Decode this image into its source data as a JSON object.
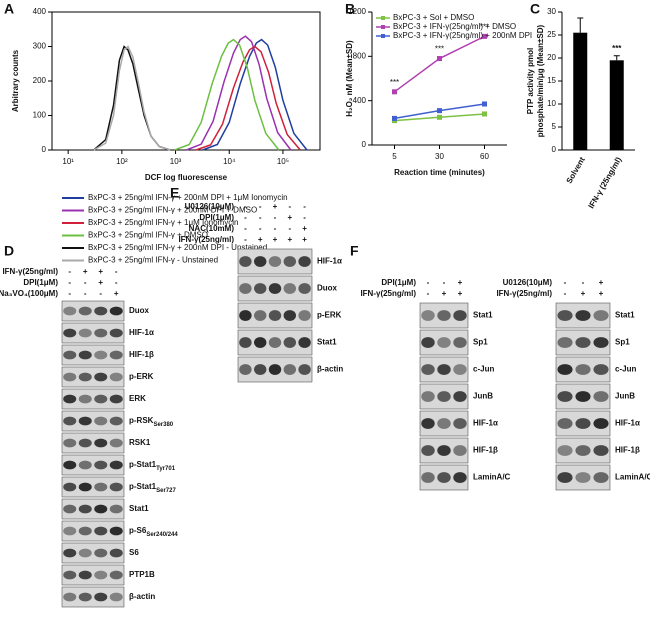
{
  "chart_data": [
    {
      "type": "line",
      "label": "A",
      "xscale": "log",
      "xlabel": "DCF log fluorescense",
      "ylabel": "Arbitrary counts",
      "xlim": [
        5,
        490000
      ],
      "ylim": [
        0,
        400
      ],
      "xticks": [
        {
          "value": 10,
          "label": "10¹"
        },
        {
          "value": 100,
          "label": "10²"
        },
        {
          "value": 1000,
          "label": "10³"
        },
        {
          "value": 10000,
          "label": "10⁴"
        },
        {
          "value": 100000,
          "label": "10⁵"
        }
      ],
      "yticks": [
        0,
        100,
        200,
        300,
        400
      ],
      "series": [
        {
          "name": "BxPC-3 + 25ng/ml IFN-γ + 200nM DPI + 1μM Ionomycin",
          "color": "#1f3f9f",
          "x": [
            3200,
            6000,
            10000,
            16000,
            24000,
            32000,
            40000,
            52000,
            72000,
            100000,
            160000,
            280000
          ],
          "values": [
            0,
            16,
            80,
            192,
            272,
            310,
            320,
            304,
            240,
            144,
            48,
            0
          ]
        },
        {
          "name": "BxPC-3 + 25ng/ml IFN-γ + 200nM DPI + DMSO",
          "color": "#9b30b0",
          "x": [
            1600,
            3000,
            5000,
            8000,
            12000,
            16000,
            20000,
            26000,
            36000,
            50000,
            80000,
            140000
          ],
          "values": [
            0,
            17,
            83,
            198,
            281,
            320,
            330,
            314,
            248,
            149,
            50,
            0
          ]
        },
        {
          "name": "BxPC-3 + 25ng/ml IFN-γ + 1μM Ionomycin",
          "color": "#d0203a",
          "x": [
            2400,
            4500,
            7500,
            12000,
            18000,
            24000,
            30000,
            39000,
            54000,
            75000,
            120000,
            210000
          ],
          "values": [
            0,
            15,
            75,
            180,
            255,
            291,
            300,
            285,
            225,
            135,
            45,
            0
          ]
        },
        {
          "name": "BxPC-3 + 25ng/ml IFN-γ + DMSO",
          "color": "#6cc040",
          "x": [
            960,
            1800,
            3000,
            4800,
            7200,
            9600,
            12000,
            15600,
            21600,
            30000,
            48000,
            84000
          ],
          "values": [
            0,
            16,
            80,
            192,
            272,
            310,
            320,
            304,
            240,
            144,
            48,
            0
          ]
        },
        {
          "name": "BxPC-3 + 25ng/ml IFN-γ + 200nM DPI - Unstained",
          "color": "#111111",
          "x": [
            30,
            50,
            70,
            90,
            110,
            130,
            160,
            200,
            260,
            350,
            500,
            800
          ],
          "values": [
            0,
            30,
            130,
            260,
            300,
            290,
            250,
            180,
            100,
            40,
            10,
            0
          ]
        },
        {
          "name": "BxPC-3 + 25ng/ml IFN-γ - Unstained",
          "color": "#aaaaaa",
          "x": [
            30,
            50,
            70,
            90,
            110,
            130,
            160,
            200,
            260,
            350,
            500,
            800
          ],
          "values": [
            0,
            20,
            100,
            230,
            290,
            300,
            270,
            200,
            110,
            40,
            10,
            0
          ]
        }
      ]
    },
    {
      "type": "line",
      "label": "B",
      "xlabel": "Reaction time (minutes)",
      "ylabel": "H₂O₂ nM (Mean±SD)",
      "categories": [
        "5",
        "30",
        "60"
      ],
      "ylim": [
        0,
        1200
      ],
      "yticks": [
        0,
        400,
        800,
        1200
      ],
      "series": [
        {
          "name": "BxPC-3 + Sol + DMSO",
          "color": "#7dc242",
          "values": [
            220,
            250,
            280
          ]
        },
        {
          "name": "BxPC-3 + IFN-γ(25ng/ml) + DMSO",
          "color": "#b040b0",
          "values": [
            480,
            780,
            980
          ],
          "point_labels": [
            "***",
            "***",
            "***"
          ]
        },
        {
          "name": "BxPC-3 + IFN-γ(25ng/ml) + 200nM DPI",
          "color": "#4060d0",
          "values": [
            240,
            310,
            370
          ]
        }
      ]
    },
    {
      "type": "bar",
      "label": "C",
      "ylabel": [
        "PTP activity pmol",
        "phosphate/min/μg (Mean±SD)"
      ],
      "categories": [
        "Solvent",
        "IFN-γ (25ng/ml)"
      ],
      "values": [
        25.5,
        19.5
      ],
      "errors": [
        3.2,
        1
      ],
      "annotations": [
        null,
        "***"
      ],
      "color": "#000000",
      "ylim": [
        0,
        30
      ],
      "yticks": [
        0,
        5,
        10,
        15,
        20,
        25,
        30
      ]
    }
  ],
  "blots": [
    {
      "label": "D",
      "lanes": 4,
      "conditions": [
        {
          "name": "IFN-γ(25ng/ml)",
          "signs": [
            "-",
            "+",
            "+",
            "-"
          ]
        },
        {
          "name": "DPI(1μM)",
          "signs": [
            "-",
            "-",
            "+",
            "-"
          ]
        },
        {
          "name": "Na₃VO₄(100μM)",
          "signs": [
            "-",
            "-",
            "-",
            "+"
          ]
        }
      ],
      "bands": [
        {
          "name": "Duox"
        },
        {
          "name": "HIF-1α"
        },
        {
          "name": "HIF-1β"
        },
        {
          "name": "p-ERK"
        },
        {
          "name": "ERK"
        },
        {
          "name": "p-RSK",
          "sub": "Ser380"
        },
        {
          "name": "RSK1"
        },
        {
          "name": "p-Stat1",
          "sub": "Tyr701"
        },
        {
          "name": "p-Stat1",
          "sub": "Ser727"
        },
        {
          "name": "Stat1"
        },
        {
          "name": "p-S6",
          "sub": "Ser240/244"
        },
        {
          "name": "S6"
        },
        {
          "name": "PTP1B"
        },
        {
          "name": "β-actin"
        }
      ]
    },
    {
      "label": "E",
      "lanes": 5,
      "conditions": [
        {
          "name": "U0126(10μM)",
          "signs": [
            "-",
            "-",
            "+",
            "-",
            "-"
          ]
        },
        {
          "name": "DPI(1μM)",
          "signs": [
            "-",
            "-",
            "-",
            "+",
            "-"
          ]
        },
        {
          "name": "NAC(10mM)",
          "signs": [
            "-",
            "-",
            "-",
            "-",
            "+"
          ]
        },
        {
          "name": "IFN-γ(25ng/ml)",
          "signs": [
            "-",
            "+",
            "+",
            "+",
            "+"
          ]
        }
      ],
      "bands": [
        {
          "name": "HIF-1α"
        },
        {
          "name": "Duox"
        },
        {
          "name": "p-ERK"
        },
        {
          "name": "Stat1"
        },
        {
          "name": "β-actin"
        }
      ]
    },
    {
      "label": "F",
      "lanes": 3,
      "conditions": [
        {
          "name": "DPI(1μM)",
          "signs": [
            "-",
            "-",
            "+"
          ]
        },
        {
          "name": "IFN-γ(25ng/ml)",
          "signs": [
            "-",
            "+",
            "+"
          ]
        }
      ],
      "bands": [
        {
          "name": "Stat1"
        },
        {
          "name": "Sp1"
        },
        {
          "name": "c-Jun"
        },
        {
          "name": "JunB"
        },
        {
          "name": "HIF-1α"
        },
        {
          "name": "HIF-1β"
        },
        {
          "name": "LaminA/C"
        }
      ]
    },
    {
      "lanes": 3,
      "conditions": [
        {
          "name": "U0126(10μM)",
          "signs": [
            "-",
            "-",
            "+"
          ]
        },
        {
          "name": "IFN-γ(25ng/ml)",
          "signs": [
            "-",
            "+",
            "+"
          ]
        }
      ],
      "bands": [
        {
          "name": "Stat1"
        },
        {
          "name": "Sp1"
        },
        {
          "name": "c-Jun"
        },
        {
          "name": "JunB"
        },
        {
          "name": "HIF-1α"
        },
        {
          "name": "HIF-1β"
        },
        {
          "name": "LaminA/C"
        }
      ]
    }
  ]
}
